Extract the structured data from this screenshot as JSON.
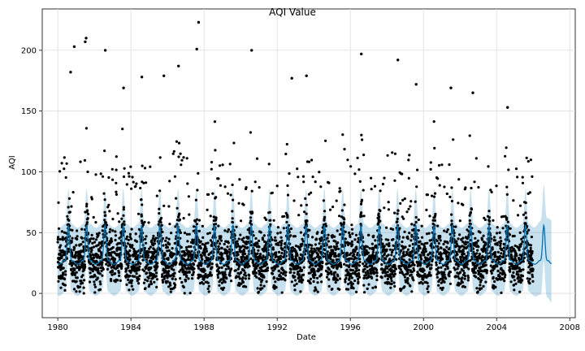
{
  "chart_data": {
    "type": "scatter",
    "title": "AQI Value",
    "xlabel": "Date",
    "ylabel": "AQI",
    "x_ticks": [
      1980,
      1984,
      1988,
      1992,
      1996,
      2000,
      2004,
      2008
    ],
    "y_ticks": [
      0,
      50,
      100,
      150,
      200
    ],
    "xlim": [
      1979.15,
      2008.3
    ],
    "ylim": [
      -20,
      234
    ],
    "grid": true,
    "observation_range": [
      1980.0,
      2006.0
    ],
    "forecast_range": [
      2006.0,
      2007.0
    ],
    "trend": {
      "trough": 27,
      "peak": 56,
      "mean_level": 34
    },
    "uncertainty": {
      "lower_offset": -26,
      "upper_offset": 30
    },
    "colors": {
      "observed": "#000000",
      "forecast_line": "#0072B2",
      "uncertainty_band": "#0072B2",
      "grid": "#dddddd"
    },
    "notable_outliers": [
      {
        "x": 1980.7,
        "y": 182
      },
      {
        "x": 1980.9,
        "y": 203
      },
      {
        "x": 1981.5,
        "y": 207
      },
      {
        "x": 1981.55,
        "y": 210
      },
      {
        "x": 1982.6,
        "y": 200
      },
      {
        "x": 1983.6,
        "y": 169
      },
      {
        "x": 1984.6,
        "y": 178
      },
      {
        "x": 1985.8,
        "y": 179
      },
      {
        "x": 1986.6,
        "y": 187
      },
      {
        "x": 1987.6,
        "y": 201
      },
      {
        "x": 1987.7,
        "y": 223
      },
      {
        "x": 1990.6,
        "y": 200
      },
      {
        "x": 1992.8,
        "y": 177
      },
      {
        "x": 1993.6,
        "y": 179
      },
      {
        "x": 1996.6,
        "y": 197
      },
      {
        "x": 1998.6,
        "y": 192
      },
      {
        "x": 1999.6,
        "y": 172
      },
      {
        "x": 2001.5,
        "y": 169
      },
      {
        "x": 2002.7,
        "y": 165
      },
      {
        "x": 2004.6,
        "y": 153
      }
    ]
  }
}
